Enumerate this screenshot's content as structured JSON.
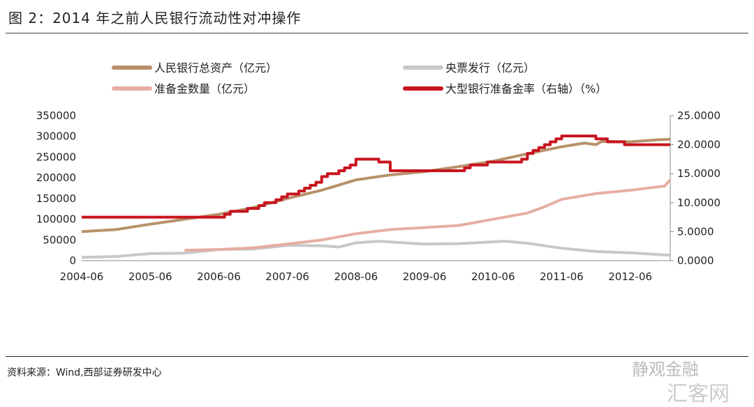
{
  "title": "图 2：2014 年之前人民银行流动性对冲操作",
  "source": "资料来源：Wind,西部证券研发中心",
  "watermark": [
    "静观金融",
    "汇客网"
  ],
  "chart_data": {
    "type": "line",
    "title": "图 2：2014 年之前人民银行流动性对冲操作",
    "xticks": [
      "2004-06",
      "2005-06",
      "2006-06",
      "2007-06",
      "2008-06",
      "2009-06",
      "2010-06",
      "2011-06",
      "2012-06"
    ],
    "xrange": [
      "2004-06",
      "2013-01"
    ],
    "ylim": [
      0,
      350000
    ],
    "yticks": [
      "0",
      "50000",
      "100000",
      "150000",
      "200000",
      "250000",
      "300000",
      "350000"
    ],
    "y2lim": [
      0,
      25
    ],
    "y2ticks": [
      "0.0000",
      "5.0000",
      "10.0000",
      "15.0000",
      "20.0000",
      "25.0000"
    ],
    "series": [
      {
        "name": "人民银行总资产（亿元）",
        "axis": "left",
        "color": "#b8916a",
        "step": false,
        "points": [
          [
            "2004-06",
            70000
          ],
          [
            "2004-12",
            75000
          ],
          [
            "2005-06",
            88000
          ],
          [
            "2005-12",
            100000
          ],
          [
            "2006-06",
            112000
          ],
          [
            "2006-12",
            128000
          ],
          [
            "2007-06",
            150000
          ],
          [
            "2007-12",
            170000
          ],
          [
            "2008-06",
            195000
          ],
          [
            "2008-12",
            207000
          ],
          [
            "2009-06",
            215000
          ],
          [
            "2009-12",
            227000
          ],
          [
            "2010-06",
            240000
          ],
          [
            "2010-12",
            258000
          ],
          [
            "2011-06",
            275000
          ],
          [
            "2011-10",
            284000
          ],
          [
            "2011-12",
            280000
          ],
          [
            "2012-01",
            288000
          ],
          [
            "2012-06",
            287000
          ],
          [
            "2012-11",
            292000
          ],
          [
            "2013-01",
            293000
          ]
        ]
      },
      {
        "name": "央票发行（亿元）",
        "axis": "left",
        "color": "#c8c8c8",
        "step": false,
        "points": [
          [
            "2004-06",
            8000
          ],
          [
            "2004-12",
            10000
          ],
          [
            "2005-06",
            17000
          ],
          [
            "2005-12",
            18000
          ],
          [
            "2006-06",
            27000
          ],
          [
            "2006-12",
            28000
          ],
          [
            "2007-06",
            37000
          ],
          [
            "2007-12",
            36000
          ],
          [
            "2008-03",
            33000
          ],
          [
            "2008-06",
            43000
          ],
          [
            "2008-10",
            47000
          ],
          [
            "2009-06",
            40000
          ],
          [
            "2009-12",
            41000
          ],
          [
            "2010-08",
            47000
          ],
          [
            "2010-12",
            42000
          ],
          [
            "2011-06",
            30000
          ],
          [
            "2011-12",
            22000
          ],
          [
            "2012-06",
            19000
          ],
          [
            "2013-01",
            13000
          ]
        ]
      },
      {
        "name": "准备金数量（亿元）",
        "axis": "left",
        "color": "#e6aea2",
        "step": false,
        "points": [
          [
            "2005-12",
            25000
          ],
          [
            "2006-06",
            27000
          ],
          [
            "2006-12",
            31000
          ],
          [
            "2007-06",
            40000
          ],
          [
            "2007-12",
            50000
          ],
          [
            "2008-06",
            65000
          ],
          [
            "2008-12",
            75000
          ],
          [
            "2009-06",
            80000
          ],
          [
            "2009-12",
            85000
          ],
          [
            "2010-06",
            100000
          ],
          [
            "2010-12",
            115000
          ],
          [
            "2011-03",
            130000
          ],
          [
            "2011-06",
            148000
          ],
          [
            "2011-12",
            162000
          ],
          [
            "2012-06",
            170000
          ],
          [
            "2012-12",
            180000
          ],
          [
            "2013-01",
            195000
          ]
        ]
      },
      {
        "name": "大型银行准备金率（右轴）（%）",
        "axis": "right",
        "color": "#c8141e",
        "step": true,
        "points": [
          [
            "2004-06",
            7.5
          ],
          [
            "2006-07",
            8
          ],
          [
            "2006-08",
            8.5
          ],
          [
            "2006-11",
            9
          ],
          [
            "2007-01",
            9.5
          ],
          [
            "2007-02",
            10
          ],
          [
            "2007-04",
            10.5
          ],
          [
            "2007-05",
            11
          ],
          [
            "2007-06",
            11.5
          ],
          [
            "2007-08",
            12
          ],
          [
            "2007-09",
            12.5
          ],
          [
            "2007-10",
            13
          ],
          [
            "2007-11",
            13.5
          ],
          [
            "2007-12",
            14.5
          ],
          [
            "2008-01",
            15
          ],
          [
            "2008-03",
            15.5
          ],
          [
            "2008-04",
            16
          ],
          [
            "2008-05",
            16.5
          ],
          [
            "2008-06",
            17.5
          ],
          [
            "2008-10",
            17
          ],
          [
            "2008-12",
            15.5
          ],
          [
            "2010-01",
            16
          ],
          [
            "2010-02",
            16.5
          ],
          [
            "2010-05",
            17
          ],
          [
            "2010-11",
            17.5
          ],
          [
            "2010-12",
            18.5
          ],
          [
            "2011-01",
            19
          ],
          [
            "2011-02",
            19.5
          ],
          [
            "2011-03",
            20
          ],
          [
            "2011-04",
            20.5
          ],
          [
            "2011-05",
            21
          ],
          [
            "2011-06",
            21.5
          ],
          [
            "2011-12",
            21
          ],
          [
            "2012-02",
            20.5
          ],
          [
            "2012-05",
            20
          ],
          [
            "2013-01",
            20
          ]
        ]
      }
    ],
    "legend_position": "top"
  }
}
